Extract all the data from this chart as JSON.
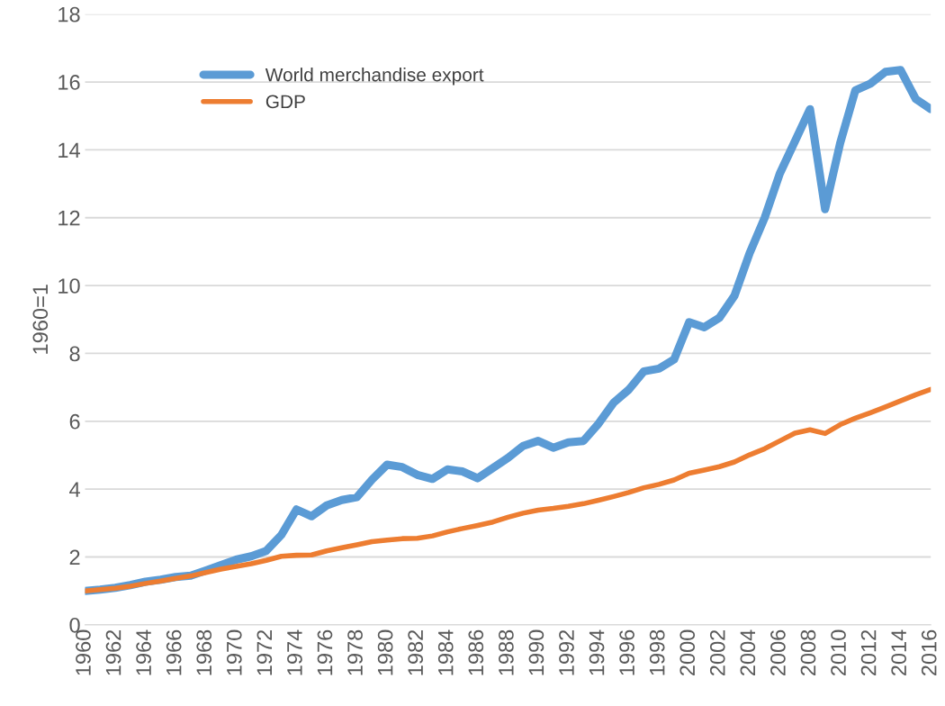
{
  "chart_data": {
    "type": "line",
    "ylabel": "1960=1",
    "x": [
      1960,
      1961,
      1962,
      1963,
      1964,
      1965,
      1966,
      1967,
      1968,
      1969,
      1970,
      1971,
      1972,
      1973,
      1974,
      1975,
      1976,
      1977,
      1978,
      1979,
      1980,
      1981,
      1982,
      1983,
      1984,
      1985,
      1986,
      1987,
      1988,
      1989,
      1990,
      1991,
      1992,
      1993,
      1994,
      1995,
      1996,
      1997,
      1998,
      1999,
      2000,
      2001,
      2002,
      2003,
      2004,
      2005,
      2006,
      2007,
      2008,
      2009,
      2010,
      2011,
      2012,
      2013,
      2014,
      2015,
      2016
    ],
    "series": [
      {
        "name": "World merchandise export",
        "color": "#5b9bd5",
        "values": [
          1.0,
          1.04,
          1.09,
          1.17,
          1.27,
          1.33,
          1.41,
          1.45,
          1.6,
          1.76,
          1.92,
          2.02,
          2.18,
          2.65,
          3.4,
          3.2,
          3.52,
          3.68,
          3.76,
          4.28,
          4.72,
          4.65,
          4.42,
          4.3,
          4.58,
          4.52,
          4.32,
          4.62,
          4.92,
          5.27,
          5.42,
          5.22,
          5.38,
          5.42,
          5.93,
          6.55,
          6.93,
          7.47,
          7.55,
          7.82,
          8.92,
          8.77,
          9.05,
          9.7,
          10.95,
          12.0,
          13.3,
          14.25,
          15.2,
          12.25,
          14.2,
          15.75,
          15.95,
          16.3,
          16.35,
          15.5,
          15.2
        ]
      },
      {
        "name": "GDP",
        "color": "#ed7d31",
        "values": [
          1.0,
          1.04,
          1.08,
          1.14,
          1.22,
          1.29,
          1.37,
          1.44,
          1.54,
          1.64,
          1.72,
          1.8,
          1.9,
          2.02,
          2.05,
          2.06,
          2.18,
          2.27,
          2.36,
          2.45,
          2.5,
          2.54,
          2.55,
          2.62,
          2.74,
          2.84,
          2.93,
          3.03,
          3.17,
          3.29,
          3.38,
          3.43,
          3.49,
          3.57,
          3.67,
          3.78,
          3.9,
          4.04,
          4.14,
          4.27,
          4.47,
          4.56,
          4.66,
          4.8,
          5.01,
          5.19,
          5.42,
          5.65,
          5.75,
          5.64,
          5.9,
          6.09,
          6.25,
          6.42,
          6.6,
          6.78,
          6.94
        ]
      }
    ],
    "xlim": [
      1960,
      2016
    ],
    "xticks": [
      1960,
      1962,
      1964,
      1966,
      1968,
      1970,
      1972,
      1974,
      1976,
      1978,
      1980,
      1982,
      1984,
      1986,
      1988,
      1990,
      1992,
      1994,
      1996,
      1998,
      2000,
      2002,
      2004,
      2006,
      2008,
      2010,
      2012,
      2014,
      2016
    ],
    "ylim": [
      0,
      18
    ],
    "yticks": [
      0,
      2,
      4,
      6,
      8,
      10,
      12,
      14,
      16,
      18
    ],
    "grid": "y",
    "legend": "top left",
    "marker": "none",
    "line_style": "solid"
  }
}
